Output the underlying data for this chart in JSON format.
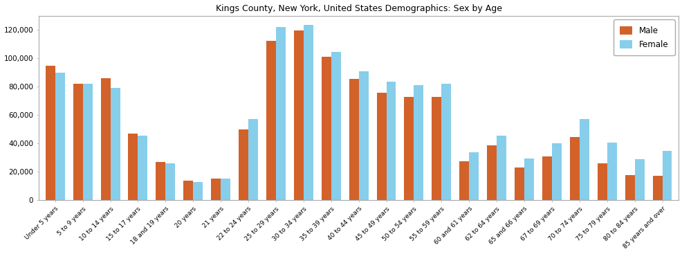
{
  "title": "Kings County, New York, United States Demographics: Sex by Age",
  "categories": [
    "Under 5 years",
    "5 to 9 years",
    "10 to 14 years",
    "15 to 17 years",
    "18 and 19 years",
    "20 years",
    "21 years",
    "22 to 24 years",
    "25 to 29 years",
    "30 to 34 years",
    "35 to 39 years",
    "40 to 44 years",
    "45 to 49 years",
    "50 to 54 years",
    "55 to 59 years",
    "60 and 61 years",
    "62 to 64 years",
    "65 and 66 years",
    "67 to 69 years",
    "70 to 74 years",
    "75 to 79 years",
    "80 to 84 years",
    "85 years and over"
  ],
  "male": [
    94500,
    82000,
    86000,
    47000,
    27000,
    14000,
    15000,
    50000,
    112000,
    119500,
    101000,
    85500,
    75500,
    72500,
    72500,
    27500,
    38500,
    23000,
    31000,
    44500,
    26000,
    17500,
    17000
  ],
  "female": [
    90000,
    82000,
    79000,
    45500,
    26000,
    13000,
    15000,
    57000,
    122000,
    123500,
    104500,
    91000,
    83500,
    81000,
    82000,
    34000,
    45500,
    29500,
    40000,
    57000,
    40500,
    29000,
    34500
  ],
  "male_color": "#D2622A",
  "female_color": "#87CEEB",
  "ylim": [
    0,
    130000
  ],
  "ytick_step": 20000,
  "legend_labels": [
    "Male",
    "Female"
  ],
  "bar_width": 0.35,
  "figsize": [
    9.87,
    3.67
  ],
  "dpi": 100
}
